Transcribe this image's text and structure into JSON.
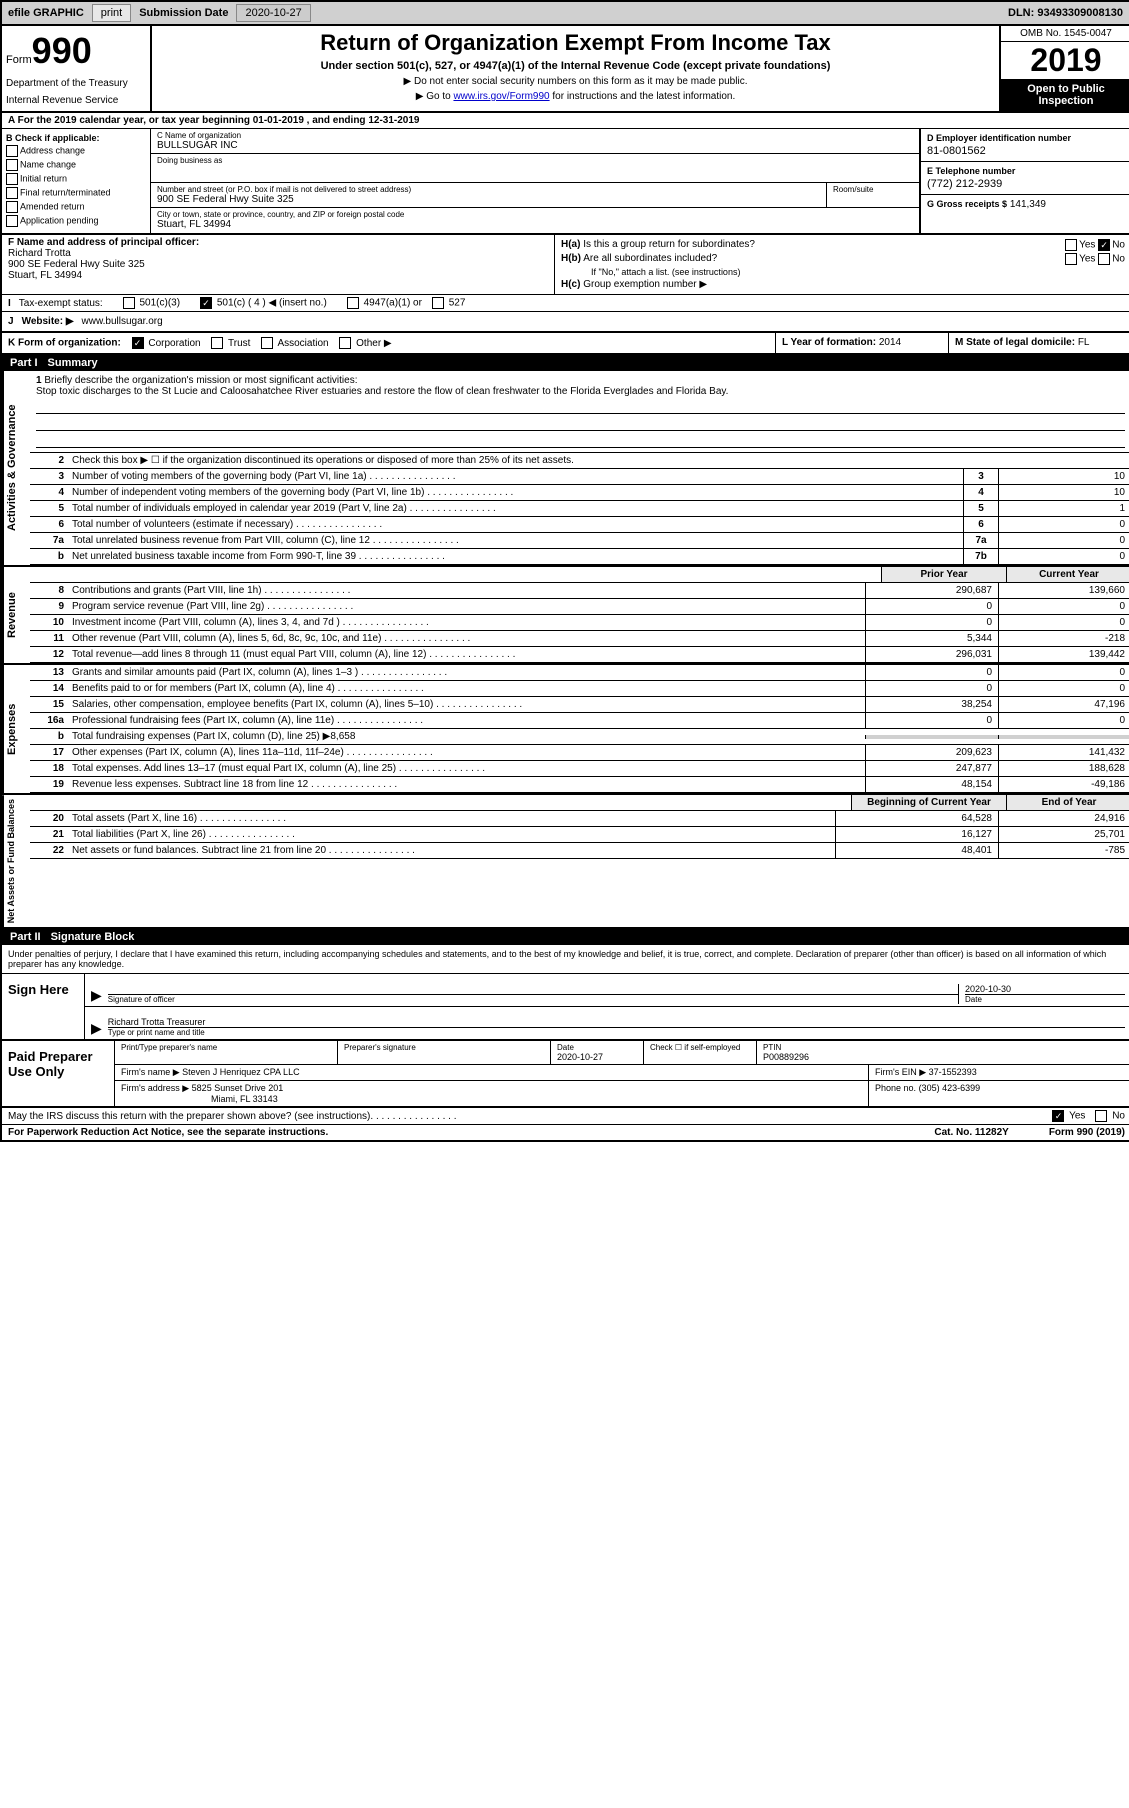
{
  "topbar": {
    "efile_label": "efile GRAPHIC",
    "print_btn": "print",
    "sub_date_label": "Submission Date",
    "sub_date": "2020-10-27",
    "dln_label": "DLN:",
    "dln": "93493309008130"
  },
  "header": {
    "form_word": "Form",
    "form_number": "990",
    "dept1": "Department of the Treasury",
    "dept2": "Internal Revenue Service",
    "title": "Return of Organization Exempt From Income Tax",
    "sub": "Under section 501(c), 527, or 4947(a)(1) of the Internal Revenue Code (except private foundations)",
    "note1": "▶ Do not enter social security numbers on this form as it may be made public.",
    "note2_pre": "▶ Go to ",
    "note2_link": "www.irs.gov/Form990",
    "note2_post": " for instructions and the latest information.",
    "omb": "OMB No. 1545-0047",
    "year": "2019",
    "open": "Open to Public Inspection"
  },
  "row_a": {
    "text": "A For the 2019 calendar year, or tax year beginning 01-01-2019 , and ending 12-31-2019"
  },
  "col_b": {
    "header": "B Check if applicable:",
    "items": [
      "Address change",
      "Name change",
      "Initial return",
      "Final return/terminated",
      "Amended return",
      "Application pending"
    ]
  },
  "col_c": {
    "name_lbl": "C Name of organization",
    "name": "BULLSUGAR INC",
    "dba_lbl": "Doing business as",
    "dba": "",
    "street_lbl": "Number and street (or P.O. box if mail is not delivered to street address)",
    "street": "900 SE Federal Hwy Suite 325",
    "room_lbl": "Room/suite",
    "city_lbl": "City or town, state or province, country, and ZIP or foreign postal code",
    "city": "Stuart, FL  34994"
  },
  "col_de": {
    "d_lbl": "D Employer identification number",
    "ein": "81-0801562",
    "e_lbl": "E Telephone number",
    "phone": "(772) 212-2939",
    "g_lbl": "G Gross receipts $",
    "gross": "141,349"
  },
  "col_f": {
    "lbl": "F Name and address of principal officer:",
    "name": "Richard Trotta",
    "addr1": "900 SE Federal Hwy Suite 325",
    "addr2": "Stuart, FL  34994"
  },
  "col_h": {
    "ha_lbl": "H(a)",
    "ha_text": "Is this a group return for subordinates?",
    "ha_yes": "Yes",
    "ha_no": "No",
    "hb_lbl": "H(b)",
    "hb_text": "Are all subordinates included?",
    "hb_note": "If \"No,\" attach a list. (see instructions)",
    "hc_lbl": "H(c)",
    "hc_text": "Group exemption number ▶"
  },
  "tax_status": {
    "i_lbl": "I",
    "text": "Tax-exempt status:",
    "opt1": "501(c)(3)",
    "opt2": "501(c) ( 4 ) ◀ (insert no.)",
    "opt3": "4947(a)(1) or",
    "opt4": "527"
  },
  "website": {
    "j_lbl": "J",
    "lbl": "Website: ▶",
    "val": "www.bullsugar.org"
  },
  "klm": {
    "k_lbl": "K Form of organization:",
    "k_opt1": "Corporation",
    "k_opt2": "Trust",
    "k_opt3": "Association",
    "k_opt4": "Other ▶",
    "l_lbl": "L Year of formation:",
    "l_val": "2014",
    "m_lbl": "M State of legal domicile:",
    "m_val": "FL"
  },
  "part1": {
    "hdr_num": "Part I",
    "hdr_title": "Summary"
  },
  "summary": {
    "line1_lbl": "1",
    "line1_text": "Briefly describe the organization's mission or most significant activities:",
    "mission": "Stop toxic discharges to the St Lucie and Caloosahatchee River estuaries and restore the flow of clean freshwater to the Florida Everglades and Florida Bay.",
    "line2_lbl": "2",
    "line2_text": "Check this box ▶ ☐ if the organization discontinued its operations or disposed of more than 25% of its net assets.",
    "lines": [
      {
        "num": "3",
        "text": "Number of voting members of the governing body (Part VI, line 1a)",
        "box": "3",
        "val": "10"
      },
      {
        "num": "4",
        "text": "Number of independent voting members of the governing body (Part VI, line 1b)",
        "box": "4",
        "val": "10"
      },
      {
        "num": "5",
        "text": "Total number of individuals employed in calendar year 2019 (Part V, line 2a)",
        "box": "5",
        "val": "1"
      },
      {
        "num": "6",
        "text": "Total number of volunteers (estimate if necessary)",
        "box": "6",
        "val": "0"
      },
      {
        "num": "7a",
        "text": "Total unrelated business revenue from Part VIII, column (C), line 12",
        "box": "7a",
        "val": "0"
      },
      {
        "num": "b",
        "text": "Net unrelated business taxable income from Form 990-T, line 39",
        "box": "7b",
        "val": "0"
      }
    ],
    "prior_hdr": "Prior Year",
    "current_hdr": "Current Year",
    "rev_lines": [
      {
        "num": "8",
        "text": "Contributions and grants (Part VIII, line 1h)",
        "prior": "290,687",
        "curr": "139,660"
      },
      {
        "num": "9",
        "text": "Program service revenue (Part VIII, line 2g)",
        "prior": "0",
        "curr": "0"
      },
      {
        "num": "10",
        "text": "Investment income (Part VIII, column (A), lines 3, 4, and 7d )",
        "prior": "0",
        "curr": "0"
      },
      {
        "num": "11",
        "text": "Other revenue (Part VIII, column (A), lines 5, 6d, 8c, 9c, 10c, and 11e)",
        "prior": "5,344",
        "curr": "-218"
      },
      {
        "num": "12",
        "text": "Total revenue—add lines 8 through 11 (must equal Part VIII, column (A), line 12)",
        "prior": "296,031",
        "curr": "139,442"
      }
    ],
    "exp_lines": [
      {
        "num": "13",
        "text": "Grants and similar amounts paid (Part IX, column (A), lines 1–3 )",
        "prior": "0",
        "curr": "0"
      },
      {
        "num": "14",
        "text": "Benefits paid to or for members (Part IX, column (A), line 4)",
        "prior": "0",
        "curr": "0"
      },
      {
        "num": "15",
        "text": "Salaries, other compensation, employee benefits (Part IX, column (A), lines 5–10)",
        "prior": "38,254",
        "curr": "47,196"
      },
      {
        "num": "16a",
        "text": "Professional fundraising fees (Part IX, column (A), line 11e)",
        "prior": "0",
        "curr": "0"
      },
      {
        "num": "b",
        "text": "Total fundraising expenses (Part IX, column (D), line 25) ▶8,658",
        "prior": "",
        "curr": "",
        "shaded": true
      },
      {
        "num": "17",
        "text": "Other expenses (Part IX, column (A), lines 11a–11d, 11f–24e)",
        "prior": "209,623",
        "curr": "141,432"
      },
      {
        "num": "18",
        "text": "Total expenses. Add lines 13–17 (must equal Part IX, column (A), line 25)",
        "prior": "247,877",
        "curr": "188,628"
      },
      {
        "num": "19",
        "text": "Revenue less expenses. Subtract line 18 from line 12",
        "prior": "48,154",
        "curr": "-49,186"
      }
    ],
    "net_hdr1": "Beginning of Current Year",
    "net_hdr2": "End of Year",
    "net_lines": [
      {
        "num": "20",
        "text": "Total assets (Part X, line 16)",
        "prior": "64,528",
        "curr": "24,916"
      },
      {
        "num": "21",
        "text": "Total liabilities (Part X, line 26)",
        "prior": "16,127",
        "curr": "25,701"
      },
      {
        "num": "22",
        "text": "Net assets or fund balances. Subtract line 21 from line 20",
        "prior": "48,401",
        "curr": "-785"
      }
    ]
  },
  "vert_labels": {
    "gov": "Activities & Governance",
    "rev": "Revenue",
    "exp": "Expenses",
    "net": "Net Assets or Fund Balances"
  },
  "part2": {
    "hdr_num": "Part II",
    "hdr_title": "Signature Block"
  },
  "sig": {
    "declaration": "Under penalties of perjury, I declare that I have examined this return, including accompanying schedules and statements, and to the best of my knowledge and belief, it is true, correct, and complete. Declaration of preparer (other than officer) is based on all information of which preparer has any knowledge.",
    "sign_here": "Sign Here",
    "sig_of_officer": "Signature of officer",
    "sig_date": "2020-10-30",
    "date_lbl": "Date",
    "officer_name": "Richard Trotta  Treasurer",
    "type_lbl": "Type or print name and title"
  },
  "prep": {
    "label": "Paid Preparer Use Only",
    "print_lbl": "Print/Type preparer's name",
    "prep_sig_lbl": "Preparer's signature",
    "date_lbl": "Date",
    "date_val": "2020-10-27",
    "check_lbl": "Check ☐ if self-employed",
    "ptin_lbl": "PTIN",
    "ptin": "P00889296",
    "firm_name_lbl": "Firm's name   ▶",
    "firm_name": "Steven J Henriquez CPA LLC",
    "firm_ein_lbl": "Firm's EIN ▶",
    "firm_ein": "37-1552393",
    "firm_addr_lbl": "Firm's address ▶",
    "firm_addr1": "5825 Sunset Drive 201",
    "firm_addr2": "Miami, FL  33143",
    "phone_lbl": "Phone no.",
    "phone": "(305) 423-6399"
  },
  "footer": {
    "discuss": "May the IRS discuss this return with the preparer shown above? (see instructions)",
    "yes": "Yes",
    "no": "No",
    "paperwork": "For Paperwork Reduction Act Notice, see the separate instructions.",
    "cat": "Cat. No. 11282Y",
    "form": "Form 990 (2019)"
  },
  "colors": {
    "black": "#000000",
    "white": "#ffffff",
    "gray_bg": "#d0d0d0",
    "btn_bg": "#e8e8e8",
    "link": "#0000cc"
  }
}
